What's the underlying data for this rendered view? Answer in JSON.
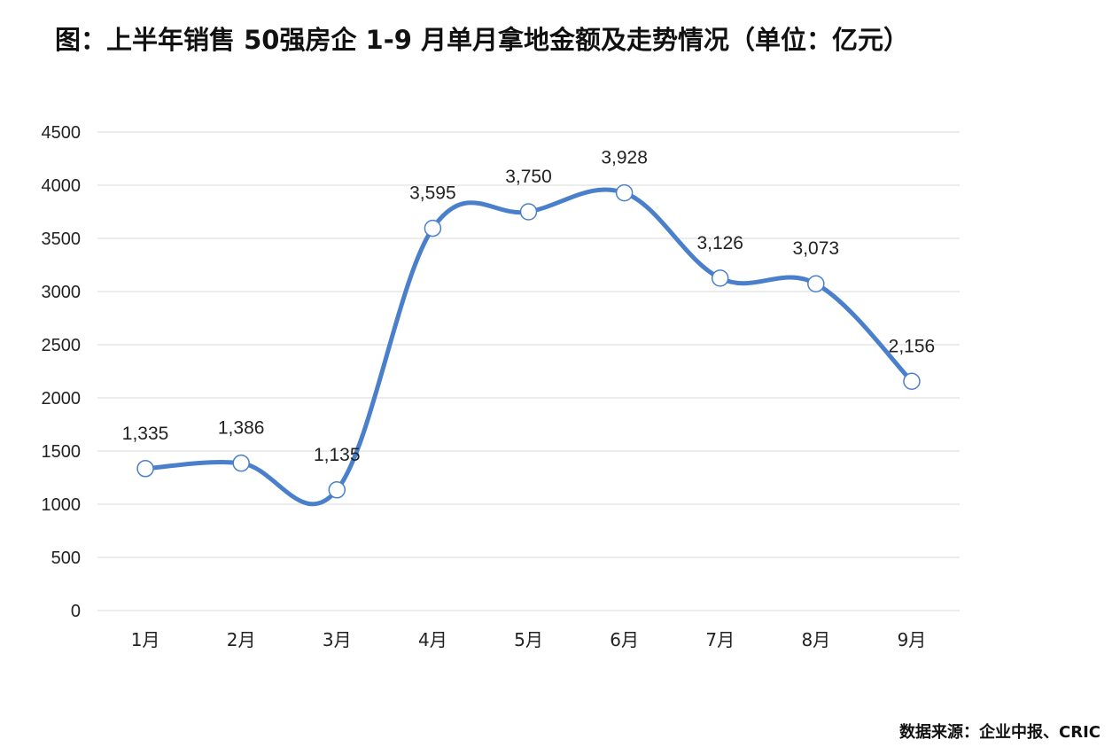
{
  "title": "图：上半年销售 50强房企 1-9 月单月拿地金额及走势情况（单位：亿元）",
  "source": "数据来源：企业中报、CRIC",
  "colors": {
    "line": "#4a7fcc",
    "grid": "#d9d9d9",
    "marker_fill": "#ffffff"
  },
  "chart_data": {
    "type": "line",
    "title": "图：上半年销售 50强房企 1-9 月单月拿地金额及走势情况（单位：亿元）",
    "categories": [
      "1月",
      "2月",
      "3月",
      "4月",
      "5月",
      "6月",
      "7月",
      "8月",
      "9月"
    ],
    "series": [
      {
        "values": [
          1335,
          1386,
          1135,
          3595,
          3750,
          3928,
          3126,
          3073,
          2156
        ],
        "labels": [
          "1,335",
          "1,386",
          "1,135",
          "3,595",
          "3,750",
          "3,928",
          "3,126",
          "3,073",
          "2,156"
        ]
      }
    ],
    "ylim": [
      0,
      4500
    ],
    "yticks": [
      "0",
      "500",
      "1000",
      "1500",
      "2000",
      "2500",
      "3000",
      "3500",
      "4000",
      "4500"
    ],
    "grid": true,
    "legend": "none",
    "smooth": true
  }
}
